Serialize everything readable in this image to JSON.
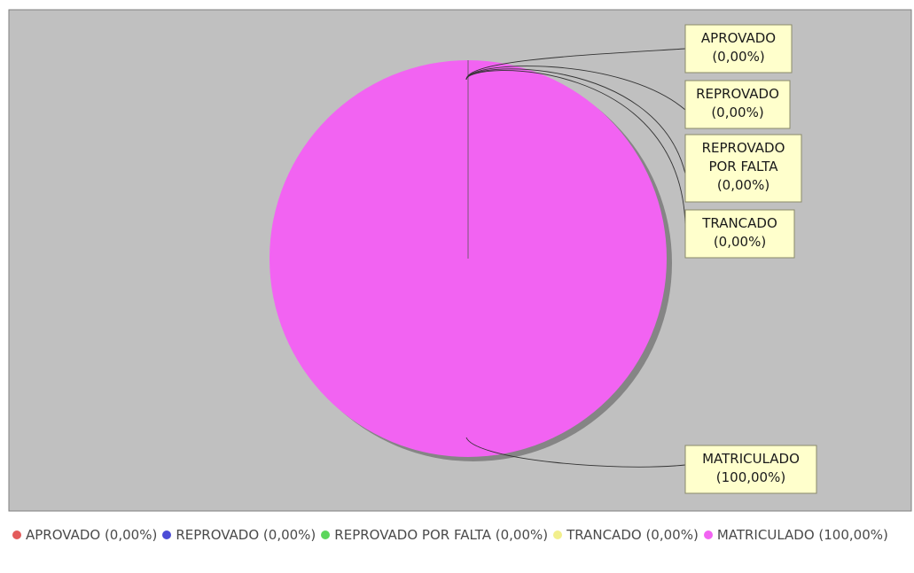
{
  "chart_data": {
    "type": "pie",
    "categories": [
      "APROVADO",
      "REPROVADO",
      "REPROVADO POR FALTA",
      "TRANCADO",
      "MATRICULADO"
    ],
    "values": [
      0,
      0,
      0,
      0,
      100
    ],
    "slices": [
      {
        "label": "APROVADO",
        "percent_label": "(0,00%)",
        "legend_label": "APROVADO (0,00%)",
        "value": 0,
        "color": "#e35b5b"
      },
      {
        "label": "REPROVADO",
        "percent_label": "(0,00%)",
        "legend_label": "REPROVADO (0,00%)",
        "value": 0,
        "color": "#4b4bd6"
      },
      {
        "label": "REPROVADO POR FALTA",
        "label_lines": [
          "REPROVADO",
          "POR FALTA"
        ],
        "percent_label": "(0,00%)",
        "legend_label": "REPROVADO POR FALTA (0,00%)",
        "value": 0,
        "color": "#5cd65c"
      },
      {
        "label": "TRANCADO",
        "percent_label": "(0,00%)",
        "legend_label": "TRANCADO (0,00%)",
        "value": 0,
        "color": "#f2ef8c"
      },
      {
        "label": "MATRICULADO",
        "percent_label": "(100,00%)",
        "legend_label": "MATRICULADO (100,00%)",
        "value": 100,
        "color": "#f263f2"
      }
    ],
    "plot_background": "#c0c0c0",
    "label_box_color": "#ffffcc",
    "legend_position": "bottom",
    "title": ""
  }
}
